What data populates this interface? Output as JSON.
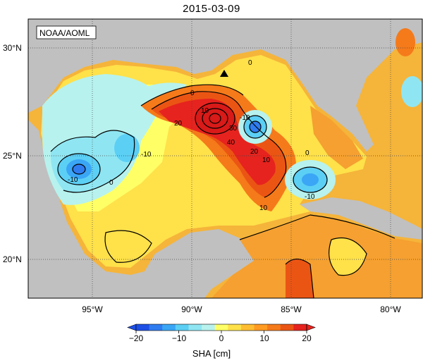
{
  "map": {
    "title": "2015-03-09",
    "credit": "NOAA/AOML",
    "lon_labels": [
      "95°W",
      "90°W",
      "85°W",
      "80°W"
    ],
    "lat_labels": [
      "30°N",
      "25°N",
      "20°N"
    ],
    "contour_labels": [
      "0",
      "10",
      "20",
      "30",
      "40",
      "-10",
      "0",
      "10",
      "20",
      "-10",
      "10",
      "0",
      "-10",
      "0",
      "-10"
    ],
    "marker": "triangle"
  },
  "colorbar": {
    "label": "SHA [cm]",
    "ticks": [
      "−20",
      "−10",
      "0",
      "10",
      "20"
    ],
    "range": [
      -20,
      20
    ],
    "colors": [
      "#1e50e6",
      "#2f7cf0",
      "#3aa6f5",
      "#5ccff5",
      "#8fe6f2",
      "#b7f2ee",
      "#ffff66",
      "#ffe14a",
      "#ffbe32",
      "#ff9b22",
      "#f57a1a",
      "#eb5514",
      "#e6231e"
    ]
  }
}
